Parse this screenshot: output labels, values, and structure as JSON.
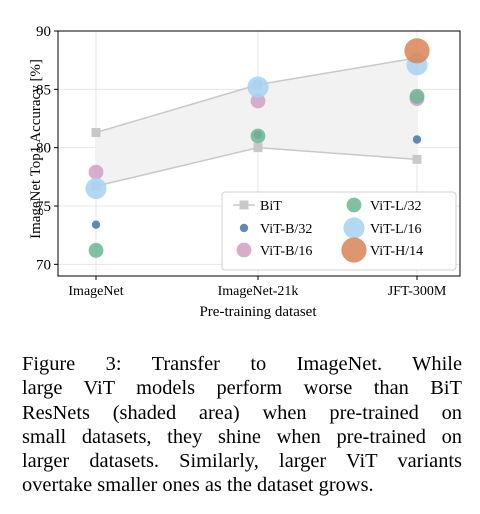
{
  "chart_data": {
    "type": "scatter",
    "categories": [
      "ImageNet",
      "ImageNet-21k",
      "JFT-300M"
    ],
    "xlabel": "Pre-training dataset",
    "ylabel": "ImageNet Top1 Accuracy [%]",
    "ylim": [
      69,
      90
    ],
    "yticks": [
      70,
      75,
      80,
      85,
      90
    ],
    "grid": true,
    "legend_position": "bottom-right",
    "bit_band": {
      "upper": [
        81.3,
        85.4,
        87.7
      ],
      "lower": [
        76.7,
        80.0,
        79.0
      ],
      "fill_color": "#f2f2f2",
      "line_color": "#c8c8c8"
    },
    "series": [
      {
        "name": "BiT",
        "marker": "square",
        "color": "#c8c8c8",
        "values": [
          [
            81.3,
            76.7
          ],
          [
            85.4,
            80.0
          ],
          [
            87.7,
            79.0
          ]
        ]
      },
      {
        "name": "ViT-B/32",
        "marker": "circle",
        "size": "small",
        "color": "#4c78a8",
        "values": [
          73.4,
          81.1,
          80.7
        ]
      },
      {
        "name": "ViT-B/16",
        "marker": "circle",
        "size": "medium",
        "color": "#d4a0c6",
        "values": [
          77.9,
          84.0,
          84.2
        ]
      },
      {
        "name": "ViT-L/32",
        "marker": "circle",
        "size": "medium",
        "color": "#6fb795",
        "values": [
          71.2,
          81.0,
          84.4
        ]
      },
      {
        "name": "ViT-L/16",
        "marker": "circle",
        "size": "large",
        "color": "#a9d3f2",
        "values": [
          76.5,
          85.2,
          87.1
        ]
      },
      {
        "name": "ViT-H/14",
        "marker": "circle",
        "size": "xlarge",
        "color": "#d8875a",
        "values": [
          null,
          null,
          88.3
        ]
      }
    ]
  },
  "caption": {
    "lines": [
      "Figure 3:   Transfer to ImageNet.   While",
      "large ViT models perform worse than BiT",
      "ResNets (shaded area) when pre-trained on",
      "small datasets, they shine when pre-trained on",
      "larger datasets.  Similarly, larger ViT variants",
      "overtake smaller ones as the dataset grows."
    ]
  }
}
